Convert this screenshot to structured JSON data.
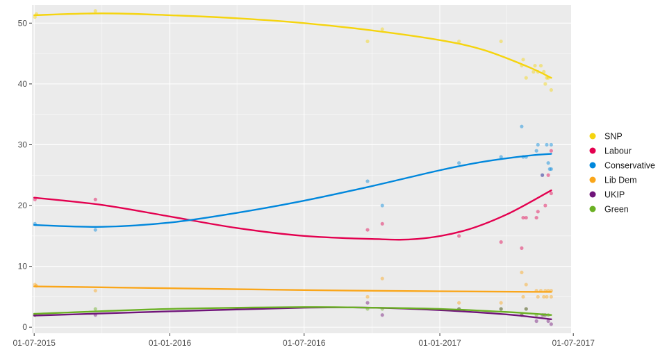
{
  "chart_data": {
    "type": "scatter",
    "title": "",
    "xlabel": "",
    "ylabel": "",
    "x_axis": {
      "type": "date",
      "range": [
        "2015-06-28",
        "2017-06-28"
      ],
      "ticks": [
        "2015-07-01",
        "2016-01-01",
        "2016-07-01",
        "2017-01-01",
        "2017-07-01"
      ],
      "tick_labels": [
        "01-07-2015",
        "01-01-2016",
        "01-07-2016",
        "01-01-2017",
        "01-07-2017"
      ]
    },
    "y_axis": {
      "range": [
        -1,
        53
      ],
      "ticks": [
        0,
        10,
        20,
        30,
        40,
        50
      ],
      "tick_labels": [
        "0",
        "10",
        "20",
        "30",
        "40",
        "50"
      ]
    },
    "grid": true,
    "legend_position": "right",
    "series": [
      {
        "name": "SNP",
        "color": "#f5d40f",
        "points": [
          [
            "2015-07-02",
            51
          ],
          [
            "2015-07-04",
            51.5
          ],
          [
            "2015-09-22",
            52
          ],
          [
            "2016-09-25",
            47
          ],
          [
            "2016-10-15",
            49
          ],
          [
            "2017-01-27",
            47
          ],
          [
            "2017-03-25",
            47
          ],
          [
            "2017-04-22",
            43
          ],
          [
            "2017-04-24",
            44
          ],
          [
            "2017-04-28",
            41
          ],
          [
            "2017-05-08",
            42
          ],
          [
            "2017-05-10",
            43
          ],
          [
            "2017-05-14",
            42
          ],
          [
            "2017-05-18",
            43
          ],
          [
            "2017-05-22",
            42
          ],
          [
            "2017-05-24",
            40
          ],
          [
            "2017-05-26",
            41
          ],
          [
            "2017-05-28",
            41
          ],
          [
            "2017-06-01",
            39
          ]
        ],
        "trend": [
          [
            "2015-07-01",
            51.3
          ],
          [
            "2015-10-01",
            51.6
          ],
          [
            "2016-01-01",
            51.3
          ],
          [
            "2016-04-01",
            50.8
          ],
          [
            "2016-07-01",
            50.0
          ],
          [
            "2016-10-01",
            48.8
          ],
          [
            "2017-01-01",
            47.2
          ],
          [
            "2017-03-01",
            45.6
          ],
          [
            "2017-05-01",
            42.8
          ],
          [
            "2017-06-01",
            41.0
          ]
        ]
      },
      {
        "name": "Labour",
        "color": "#e3004f",
        "points": [
          [
            "2015-07-02",
            21
          ],
          [
            "2015-09-22",
            21
          ],
          [
            "2016-09-25",
            16
          ],
          [
            "2016-10-15",
            17
          ],
          [
            "2017-01-27",
            15
          ],
          [
            "2017-03-25",
            14
          ],
          [
            "2017-04-22",
            13
          ],
          [
            "2017-04-24",
            18
          ],
          [
            "2017-04-28",
            18
          ],
          [
            "2017-05-12",
            18
          ],
          [
            "2017-05-14",
            19
          ],
          [
            "2017-05-20",
            25
          ],
          [
            "2017-05-24",
            20
          ],
          [
            "2017-05-28",
            25
          ],
          [
            "2017-06-01",
            29
          ],
          [
            "2017-06-01",
            22
          ]
        ],
        "trend": [
          [
            "2015-07-01",
            21.3
          ],
          [
            "2015-10-01",
            20.1
          ],
          [
            "2016-01-01",
            18.2
          ],
          [
            "2016-04-01",
            16.3
          ],
          [
            "2016-07-01",
            15.0
          ],
          [
            "2016-10-01",
            14.5
          ],
          [
            "2016-12-01",
            14.5
          ],
          [
            "2017-02-01",
            15.8
          ],
          [
            "2017-04-01",
            18.5
          ],
          [
            "2017-06-01",
            22.5
          ]
        ]
      },
      {
        "name": "Conservative",
        "color": "#0087dc",
        "points": [
          [
            "2015-07-02",
            17
          ],
          [
            "2015-09-22",
            16
          ],
          [
            "2016-09-25",
            24
          ],
          [
            "2016-10-15",
            20
          ],
          [
            "2017-01-27",
            27
          ],
          [
            "2017-03-25",
            28
          ],
          [
            "2017-04-22",
            33
          ],
          [
            "2017-04-24",
            28
          ],
          [
            "2017-04-28",
            28
          ],
          [
            "2017-05-12",
            29
          ],
          [
            "2017-05-14",
            30
          ],
          [
            "2017-05-20",
            25
          ],
          [
            "2017-05-26",
            30
          ],
          [
            "2017-05-28",
            27
          ],
          [
            "2017-05-30",
            26
          ],
          [
            "2017-06-01",
            30
          ],
          [
            "2017-06-01",
            26
          ]
        ],
        "trend": [
          [
            "2015-07-01",
            16.8
          ],
          [
            "2015-10-01",
            16.5
          ],
          [
            "2016-01-01",
            17.2
          ],
          [
            "2016-04-01",
            18.8
          ],
          [
            "2016-07-01",
            20.8
          ],
          [
            "2016-10-01",
            23.2
          ],
          [
            "2017-01-01",
            25.8
          ],
          [
            "2017-03-01",
            27.2
          ],
          [
            "2017-05-01",
            28.2
          ],
          [
            "2017-06-01",
            28.5
          ]
        ]
      },
      {
        "name": "Lib Dem",
        "color": "#faa61a",
        "points": [
          [
            "2015-07-02",
            7
          ],
          [
            "2015-07-04",
            6.8
          ],
          [
            "2015-09-22",
            6
          ],
          [
            "2016-09-25",
            5
          ],
          [
            "2016-10-15",
            8
          ],
          [
            "2017-01-27",
            4
          ],
          [
            "2017-03-25",
            4
          ],
          [
            "2017-04-22",
            9
          ],
          [
            "2017-04-24",
            5
          ],
          [
            "2017-04-28",
            7
          ],
          [
            "2017-05-12",
            6
          ],
          [
            "2017-05-14",
            5
          ],
          [
            "2017-05-18",
            6
          ],
          [
            "2017-05-22",
            5
          ],
          [
            "2017-05-24",
            6
          ],
          [
            "2017-05-26",
            5
          ],
          [
            "2017-05-28",
            6
          ],
          [
            "2017-06-01",
            6
          ],
          [
            "2017-06-01",
            5
          ]
        ],
        "trend": [
          [
            "2015-07-01",
            6.7
          ],
          [
            "2016-01-01",
            6.4
          ],
          [
            "2016-07-01",
            6.1
          ],
          [
            "2017-01-01",
            5.9
          ],
          [
            "2017-06-01",
            5.8
          ]
        ]
      },
      {
        "name": "UKIP",
        "color": "#70147a",
        "points": [
          [
            "2015-07-02",
            2
          ],
          [
            "2015-09-22",
            2
          ],
          [
            "2016-09-25",
            4
          ],
          [
            "2016-10-15",
            2
          ],
          [
            "2017-01-27",
            3
          ],
          [
            "2017-03-25",
            3
          ],
          [
            "2017-04-22",
            2
          ],
          [
            "2017-04-28",
            3
          ],
          [
            "2017-05-12",
            1
          ],
          [
            "2017-05-20",
            2
          ],
          [
            "2017-05-24",
            2
          ],
          [
            "2017-05-28",
            1
          ],
          [
            "2017-06-01",
            0.5
          ]
        ],
        "trend": [
          [
            "2015-07-01",
            1.9
          ],
          [
            "2016-01-01",
            2.6
          ],
          [
            "2016-07-01",
            3.2
          ],
          [
            "2016-10-01",
            3.2
          ],
          [
            "2017-01-01",
            2.8
          ],
          [
            "2017-04-01",
            2.1
          ],
          [
            "2017-06-01",
            1.3
          ]
        ]
      },
      {
        "name": "Green",
        "color": "#6ab023",
        "points": [
          [
            "2015-07-02",
            2
          ],
          [
            "2015-09-22",
            3
          ],
          [
            "2016-09-25",
            3
          ],
          [
            "2016-10-15",
            3
          ],
          [
            "2017-01-27",
            3
          ],
          [
            "2017-03-25",
            3
          ],
          [
            "2017-04-22",
            2
          ],
          [
            "2017-04-28",
            3
          ],
          [
            "2017-05-12",
            2
          ],
          [
            "2017-05-22",
            2
          ],
          [
            "2017-05-28",
            2
          ]
        ],
        "trend": [
          [
            "2015-07-01",
            2.2
          ],
          [
            "2016-01-01",
            3.0
          ],
          [
            "2016-07-01",
            3.3
          ],
          [
            "2016-10-01",
            3.2
          ],
          [
            "2017-01-01",
            3.0
          ],
          [
            "2017-04-01",
            2.5
          ],
          [
            "2017-06-01",
            2.0
          ]
        ]
      }
    ]
  }
}
